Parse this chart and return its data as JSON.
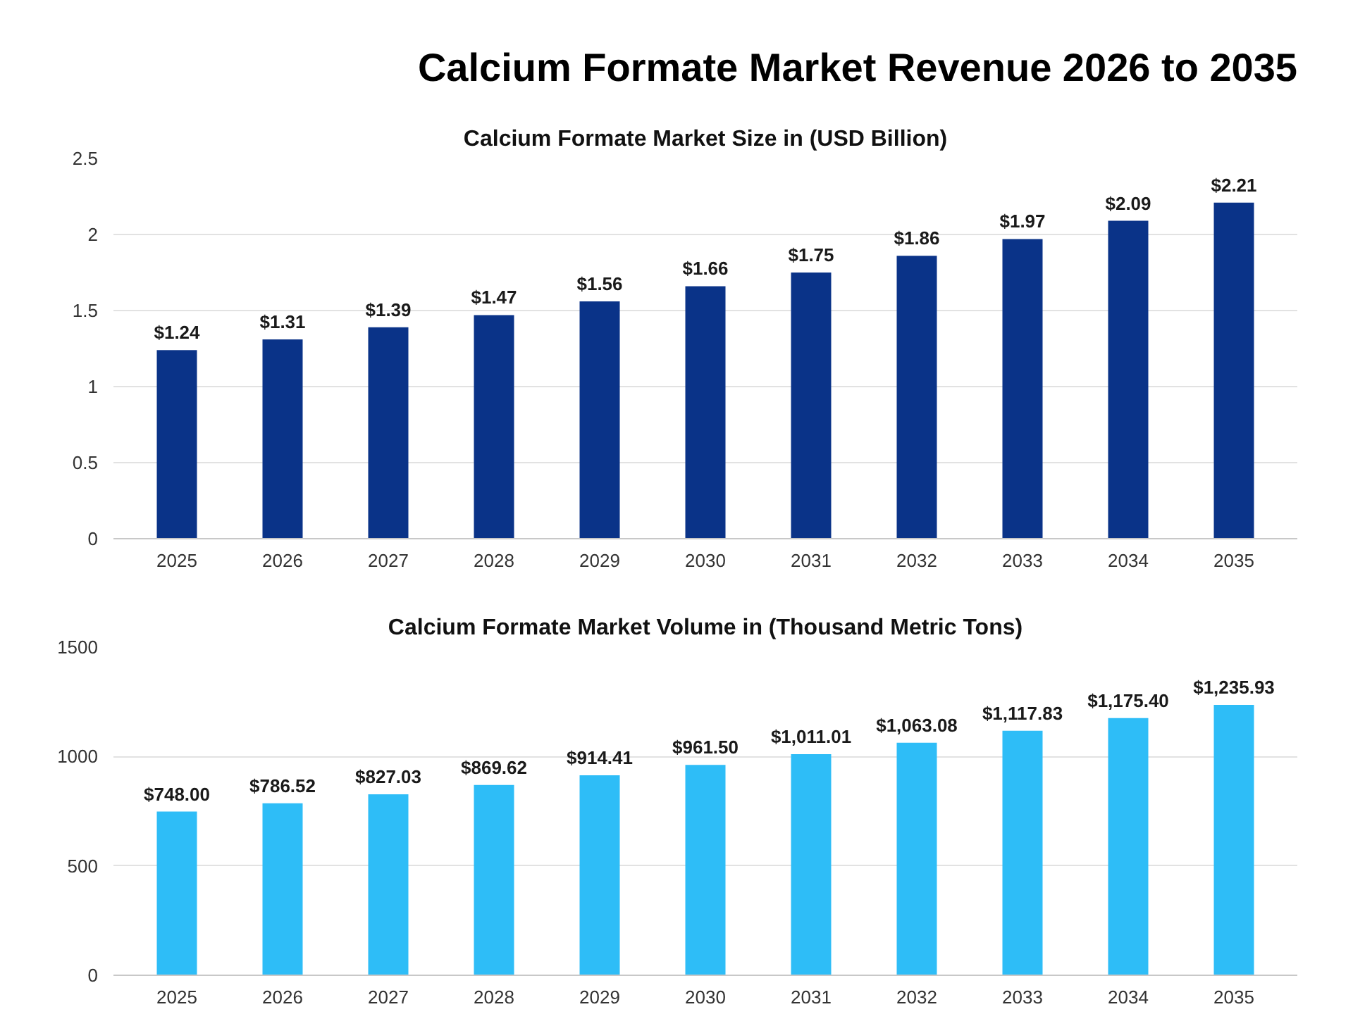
{
  "chart_data": [
    {
      "type": "bar",
      "title": "Calcium Formate Market Revenue 2026 to 2035",
      "subtitle": "Calcium Formate Market Size in (USD Billion)",
      "categories": [
        "2025",
        "2026",
        "2027",
        "2028",
        "2029",
        "2030",
        "2031",
        "2032",
        "2033",
        "2034",
        "2035"
      ],
      "values": [
        1.24,
        1.31,
        1.39,
        1.47,
        1.56,
        1.66,
        1.75,
        1.86,
        1.97,
        2.09,
        2.21
      ],
      "value_labels": [
        "$1.24",
        "$1.31",
        "$1.39",
        "$1.47",
        "$1.56",
        "$1.66",
        "$1.75",
        "$1.86",
        "$1.97",
        "$2.09",
        "$2.21"
      ],
      "color": "#0a3388",
      "ylim": [
        0,
        2.5
      ],
      "yticks": [
        0,
        0.5,
        1,
        1.5,
        2,
        2.5
      ],
      "grid": "y"
    },
    {
      "type": "bar",
      "subtitle": "Calcium Formate Market Volume in (Thousand Metric Tons)",
      "categories": [
        "2025",
        "2026",
        "2027",
        "2028",
        "2029",
        "2030",
        "2031",
        "2032",
        "2033",
        "2034",
        "2035"
      ],
      "values": [
        748.0,
        786.52,
        827.03,
        869.62,
        914.41,
        961.5,
        1011.01,
        1063.08,
        1117.83,
        1175.4,
        1235.93
      ],
      "value_labels": [
        "$748.00",
        "$786.52",
        "$827.03",
        "$869.62",
        "$914.41",
        "$961.50",
        "$1,011.01",
        "$1,063.08",
        "$1,117.83",
        "$1,175.40",
        "$1,235.93"
      ],
      "color": "#2ebdf7",
      "ylim": [
        0,
        1500
      ],
      "yticks": [
        0,
        500,
        1000,
        1500
      ],
      "grid": "y"
    }
  ]
}
